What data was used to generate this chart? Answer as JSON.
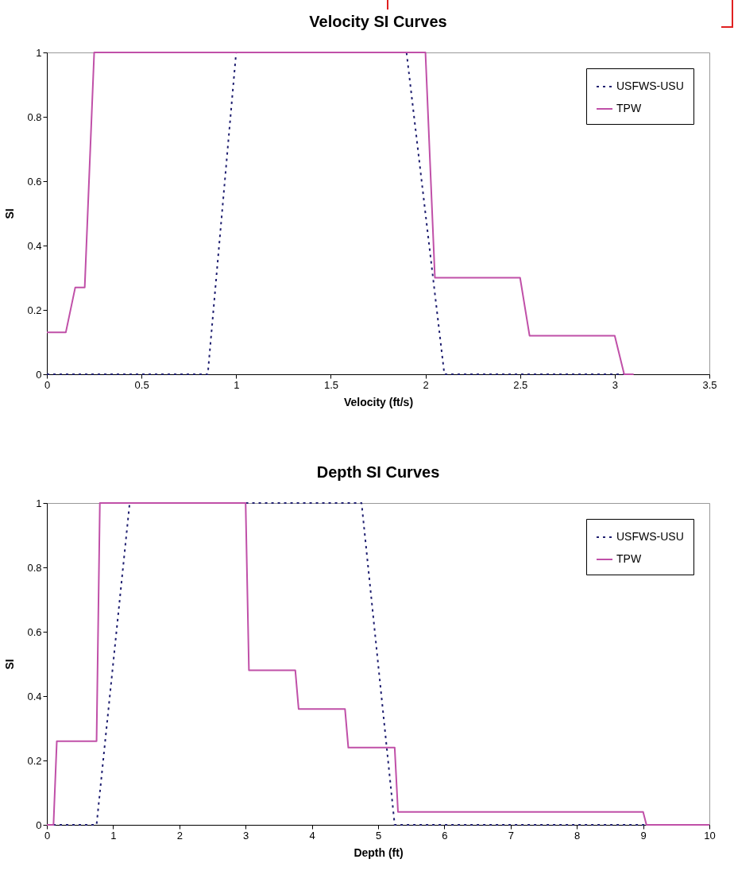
{
  "chart_data": [
    {
      "type": "line",
      "title": "Velocity SI Curves",
      "xlabel": "Velocity (ft/s)",
      "ylabel": "SI",
      "xlim": [
        0,
        3.5
      ],
      "xticks": [
        0,
        0.5,
        1,
        1.5,
        2,
        2.5,
        3,
        3.5
      ],
      "ylim": [
        0,
        1
      ],
      "yticks": [
        0,
        0.2,
        0.4,
        0.6,
        0.8,
        1
      ],
      "grid": false,
      "legend": "top right",
      "marker": "none",
      "series": [
        {
          "name": "USFWS-USU",
          "color": "#1f1f70",
          "line_style": "dotted",
          "x": [
            0,
            0.85,
            1.0,
            1.9,
            2.1,
            3.1
          ],
          "values": [
            0,
            0,
            1,
            1,
            0,
            0
          ]
        },
        {
          "name": "TPW",
          "color": "#c050a8",
          "line_style": "solid",
          "x": [
            0,
            0.1,
            0.15,
            0.2,
            0.25,
            2.0,
            2.05,
            2.5,
            2.55,
            3.0,
            3.05,
            3.1
          ],
          "values": [
            0.13,
            0.13,
            0.27,
            0.27,
            1,
            1,
            0.3,
            0.3,
            0.12,
            0.12,
            0,
            0
          ]
        }
      ]
    },
    {
      "type": "line",
      "title": "Depth SI Curves",
      "xlabel": "Depth (ft)",
      "ylabel": "SI",
      "xlim": [
        0,
        10
      ],
      "xticks": [
        0,
        1,
        2,
        3,
        4,
        5,
        6,
        7,
        8,
        9,
        10
      ],
      "ylim": [
        0,
        1
      ],
      "yticks": [
        0,
        0.2,
        0.4,
        0.6,
        0.8,
        1
      ],
      "grid": false,
      "legend": "top right",
      "marker": "none",
      "series": [
        {
          "name": "USFWS-USU",
          "color": "#1f1f70",
          "line_style": "dotted",
          "x": [
            0,
            0.75,
            1.25,
            4.75,
            5.25,
            10
          ],
          "values": [
            0,
            0,
            1,
            1,
            0,
            0
          ]
        },
        {
          "name": "TPW",
          "color": "#c050a8",
          "line_style": "solid",
          "x": [
            0,
            0.1,
            0.15,
            0.75,
            0.8,
            3.0,
            3.05,
            3.75,
            3.8,
            4.5,
            4.55,
            5.25,
            5.3,
            9.0,
            9.05,
            10
          ],
          "values": [
            0,
            0,
            0.26,
            0.26,
            1,
            1,
            0.48,
            0.48,
            0.36,
            0.36,
            0.24,
            0.24,
            0.04,
            0.04,
            0,
            0
          ]
        }
      ]
    }
  ]
}
